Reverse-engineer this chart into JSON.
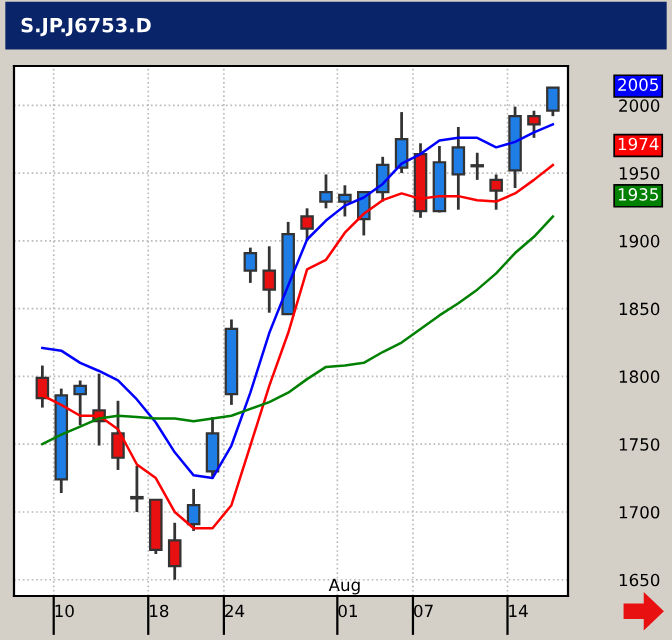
{
  "chart_data": {
    "type": "candlestick",
    "title": "S.JP.J6753.D",
    "categories": [
      null,
      "10",
      null,
      null,
      null,
      null,
      "18",
      null,
      null,
      null,
      "24",
      null,
      null,
      null,
      null,
      null,
      "01",
      null,
      null,
      null,
      "07",
      null,
      null,
      null,
      null,
      "14",
      null,
      null
    ],
    "ohlc": [
      [
        1799,
        1808,
        1777,
        1784
      ],
      [
        1724,
        1791,
        1714,
        1786
      ],
      [
        1787,
        1797,
        1764,
        1793
      ],
      [
        1775,
        1802,
        1749,
        1767
      ],
      [
        1758,
        1782,
        1731,
        1740
      ],
      [
        1711,
        1734,
        1700,
        1710
      ],
      [
        1709,
        1709,
        1669,
        1672
      ],
      [
        1679,
        1692,
        1650,
        1660
      ],
      [
        1691,
        1717,
        1686,
        1705
      ],
      [
        1730,
        1770,
        1726,
        1758
      ],
      [
        1787,
        1842,
        1779,
        1835
      ],
      [
        1878,
        1895,
        1869,
        1891
      ],
      [
        1878,
        1896,
        1847,
        1864
      ],
      [
        1846,
        1914,
        1846,
        1905
      ],
      [
        1918,
        1924,
        1900,
        1909
      ],
      [
        1929,
        1949,
        1924,
        1936
      ],
      [
        1929,
        1941,
        1918,
        1934
      ],
      [
        1916,
        1936,
        1904,
        1936
      ],
      [
        1936,
        1962,
        1929,
        1956
      ],
      [
        1954,
        1995,
        1950,
        1975
      ],
      [
        1964,
        1972,
        1917,
        1922
      ],
      [
        1922,
        1970,
        1921,
        1958
      ],
      [
        1949,
        1984,
        1923,
        1969
      ],
      [
        1955,
        1965,
        1945,
        1955
      ],
      [
        1945,
        1949,
        1923,
        1937
      ],
      [
        1952,
        1999,
        1939,
        1992
      ],
      [
        1992,
        1996,
        1976,
        1986
      ],
      [
        1996,
        2013,
        1992,
        2013
      ]
    ],
    "colors": [
      "#e81010",
      "#1e7ee6",
      "#1e7ee6",
      "#e81010",
      "#e81010",
      "#333333",
      "#e81010",
      "#e81010",
      "#1e7ee6",
      "#1e7ee6",
      "#1e7ee6",
      "#1e7ee6",
      "#e81010",
      "#1e7ee6",
      "#e81010",
      "#1e7ee6",
      "#1e7ee6",
      "#1e7ee6",
      "#1e7ee6",
      "#1e7ee6",
      "#e81010",
      "#1e7ee6",
      "#1e7ee6",
      "#333333",
      "#e81010",
      "#1e7ee6",
      "#e81010",
      "#1e7ee6"
    ],
    "series": [
      {
        "type": "line",
        "color": "#0000ff",
        "values": [
          1821,
          1819,
          1810,
          1804,
          1797,
          1783,
          1766,
          1744,
          1727,
          1725,
          1749,
          1788,
          1832,
          1867,
          1901,
          1915,
          1926,
          1932,
          1942,
          1957,
          1964,
          1974,
          1976,
          1976,
          1969,
          1973,
          1980,
          1986
        ]
      },
      {
        "type": "line",
        "color": "#ff0000",
        "values": [
          1786,
          1779,
          1771,
          1771,
          1761,
          1735,
          1725,
          1700,
          1688,
          1688,
          1705,
          1749,
          1793,
          1832,
          1879,
          1886,
          1906,
          1920,
          1930,
          1935,
          1931,
          1933,
          1933,
          1930,
          1929,
          1935,
          1945,
          1956
        ]
      },
      {
        "type": "line",
        "color": "#008000",
        "values": [
          1750,
          1757,
          1763,
          1769,
          1771,
          1770,
          1769,
          1769,
          1767,
          1769,
          1771,
          1776,
          1781,
          1788,
          1798,
          1807,
          1808,
          1810,
          1818,
          1825,
          1835,
          1845,
          1854,
          1864,
          1876,
          1891,
          1903,
          1918
        ]
      }
    ],
    "annotations": [
      "Aug",
      "2005",
      "1974",
      "1935"
    ],
    "ylim": [
      1638,
      2029
    ],
    "yticks": [
      1650,
      1700,
      1750,
      1800,
      1850,
      1900,
      1950,
      2000
    ],
    "grid": true,
    "line_style": "solid",
    "marker": "none"
  }
}
